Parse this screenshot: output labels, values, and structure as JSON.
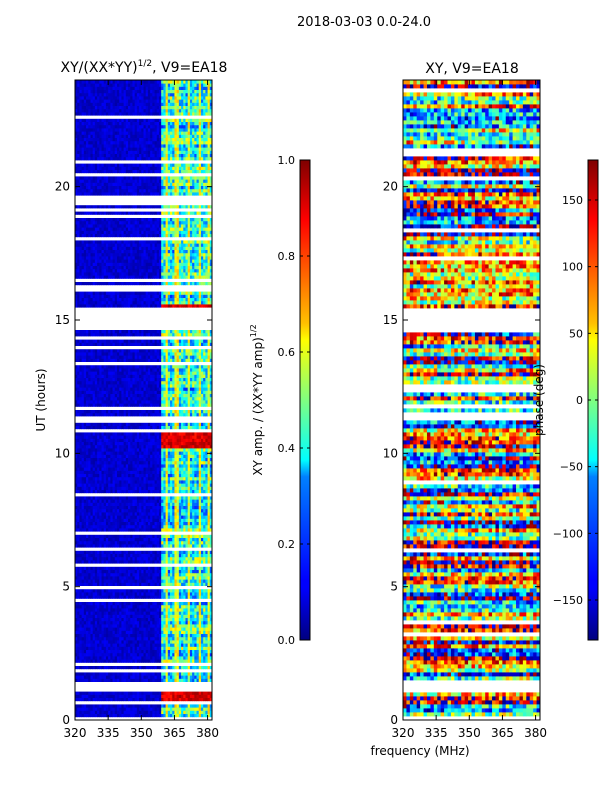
{
  "suptitle": "2018-03-03 0.0-24.0",
  "chart_data": [
    {
      "type": "heatmap",
      "title": "XY/(XX*YY)",
      "title_exponent": "1/2",
      "title_suffix": ", V9=EA18",
      "ylabel": "UT (hours)",
      "xlabel": "",
      "xlim": [
        320,
        382
      ],
      "ylim": [
        0,
        24
      ],
      "xticks": [
        "320",
        "335",
        "350",
        "365",
        "380"
      ],
      "yticks": [
        "0",
        "5",
        "10",
        "15",
        "20"
      ],
      "colormap": "jet",
      "value_range": [
        0,
        1
      ],
      "active_band_mhz": [
        359.5,
        382
      ],
      "blank_rows_ut": [
        [
          1.1,
          1.45
        ],
        [
          14.6,
          15.5
        ],
        [
          1.55,
          1.6
        ],
        [
          4.5,
          4.55
        ],
        [
          5.5,
          5.55
        ],
        [
          6.9,
          6.95
        ],
        [
          11.3,
          11.35
        ],
        [
          12.8,
          12.85
        ],
        [
          18.0,
          18.05
        ],
        [
          19.5,
          19.55
        ],
        [
          22.6,
          22.65
        ],
        [
          23.5,
          23.55
        ]
      ],
      "hot_spots_ut": [
        1.0,
        15.3,
        10.5
      ]
    },
    {
      "type": "colorbar",
      "label": "XY amp. / (XX*YY amp)",
      "label_exponent": "1/2",
      "range": [
        0.0,
        1.0
      ],
      "ticks": [
        "0.0",
        "0.2",
        "0.4",
        "0.6",
        "0.8",
        "1.0"
      ]
    },
    {
      "type": "heatmap",
      "title": "XY, V9=EA18",
      "xlabel": "frequency (MHz)",
      "ylabel": "",
      "xlim": [
        320,
        382
      ],
      "ylim": [
        0,
        24
      ],
      "xticks": [
        "320",
        "335",
        "350",
        "365",
        "380"
      ],
      "yticks": [
        "0",
        "5",
        "10",
        "15",
        "20"
      ],
      "colormap": "jet",
      "value_range": [
        -180,
        180
      ],
      "blank_rows_ut": [
        [
          1.1,
          1.45
        ],
        [
          14.6,
          15.5
        ],
        [
          4.5,
          4.55
        ],
        [
          6.9,
          6.95
        ],
        [
          11.3,
          11.35
        ],
        [
          18.0,
          18.05
        ],
        [
          19.5,
          19.55
        ],
        [
          22.6,
          22.65
        ]
      ]
    },
    {
      "type": "colorbar",
      "label": "phase (deg)",
      "range": [
        -180,
        180
      ],
      "ticks": [
        "−150",
        "−100",
        "−50",
        "0",
        "50",
        "100",
        "150"
      ],
      "tick_values": [
        -150,
        -100,
        -50,
        0,
        50,
        100,
        150
      ]
    }
  ]
}
